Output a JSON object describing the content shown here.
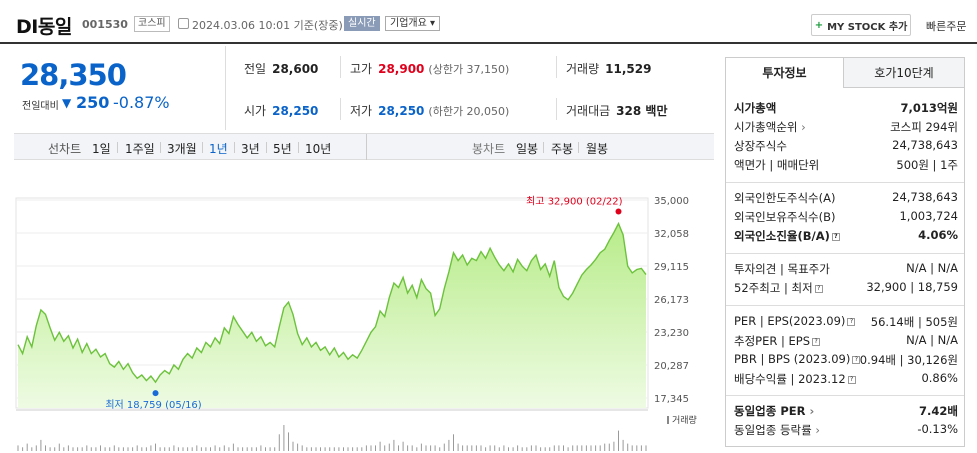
{
  "header": {
    "name": "DI동일",
    "code": "001530",
    "market": "코스피",
    "datetime": "2024.03.06 10:01 기준(장중)",
    "realtime": "실시간",
    "company_info": "기업개요",
    "mystock": "MY STOCK 추가",
    "quick_order": "빠른주문"
  },
  "price": {
    "current": "28,350",
    "change_label": "전일대비",
    "change_value": "250",
    "change_pct": "-0.87%"
  },
  "quote": {
    "prev_label": "전일",
    "prev": "28,600",
    "high_label": "고가",
    "high": "28,900",
    "upper_limit": "(상한가 37,150)",
    "volume_label": "거래량",
    "volume": "11,529",
    "open_label": "시가",
    "open": "28,250",
    "low_label": "저가",
    "low": "28,250",
    "lower_limit": "(하한가 20,050)",
    "amount_label": "거래대금",
    "amount": "328 백만"
  },
  "period": {
    "line_label": "선차트",
    "line_items": [
      "1일",
      "1주일",
      "3개월",
      "1년",
      "3년",
      "5년",
      "10년"
    ],
    "active": "1년",
    "candle_label": "봉차트",
    "candle_items": [
      "일봉",
      "주봉",
      "월봉"
    ]
  },
  "chart_data": {
    "type": "area",
    "yticks": [
      "35,000",
      "32,058",
      "29,115",
      "26,173",
      "23,230",
      "20,287",
      "17,345"
    ],
    "ylim": [
      17345,
      35000
    ],
    "values": [
      22100,
      21300,
      22800,
      21900,
      23800,
      25200,
      24800,
      23600,
      22500,
      23200,
      22400,
      22900,
      21800,
      22600,
      21400,
      22200,
      21300,
      21700,
      21000,
      21300,
      20400,
      20100,
      20600,
      19900,
      20400,
      19600,
      19100,
      19400,
      18900,
      19300,
      18759,
      19400,
      19800,
      19500,
      20300,
      19900,
      20800,
      21300,
      20900,
      21800,
      21400,
      22300,
      21900,
      22700,
      22200,
      23600,
      23100,
      24600,
      23900,
      23300,
      22700,
      23200,
      22400,
      22800,
      22000,
      22300,
      21900,
      23700,
      25400,
      25900,
      24800,
      23100,
      22100,
      22700,
      21900,
      22300,
      21600,
      21900,
      21200,
      21800,
      21000,
      21400,
      20800,
      21200,
      20900,
      21600,
      22400,
      23200,
      23700,
      25100,
      24600,
      26300,
      27600,
      27200,
      28100,
      26700,
      27400,
      26300,
      27900,
      27100,
      26700,
      24700,
      25300,
      27100,
      28600,
      30300,
      29600,
      30100,
      29200,
      29800,
      29600,
      30400,
      29800,
      30700,
      29900,
      29200,
      28700,
      29300,
      28600,
      29700,
      29100,
      28700,
      29600,
      30100,
      28800,
      29300,
      28200,
      29600,
      27200,
      26400,
      26100,
      26700,
      27500,
      28300,
      28800,
      29200,
      29700,
      30300,
      30600,
      31400,
      32100,
      32900,
      31900,
      29100,
      28500,
      28800,
      28900,
      28350
    ],
    "high_label": "최고 32,900 (02/22)",
    "low_label": "최저 18,759 (05/16)",
    "volume_label": "거래량",
    "volumes": [
      3,
      2,
      4,
      2,
      3,
      6,
      3,
      2,
      2,
      4,
      2,
      3,
      2,
      2,
      2,
      3,
      2,
      2,
      3,
      2,
      2,
      3,
      2,
      2,
      2,
      2,
      3,
      2,
      2,
      3,
      4,
      2,
      2,
      2,
      3,
      2,
      2,
      2,
      2,
      3,
      2,
      2,
      2,
      3,
      2,
      3,
      2,
      4,
      2,
      2,
      2,
      2,
      2,
      3,
      2,
      2,
      2,
      9,
      14,
      10,
      5,
      4,
      3,
      2,
      2,
      2,
      2,
      2,
      2,
      2,
      2,
      2,
      2,
      2,
      2,
      2,
      3,
      3,
      3,
      5,
      3,
      4,
      6,
      3,
      5,
      3,
      3,
      2,
      4,
      3,
      3,
      3,
      2,
      4,
      6,
      9,
      4,
      3,
      3,
      3,
      3,
      3,
      2,
      3,
      3,
      2,
      3,
      2,
      2,
      3,
      2,
      2,
      3,
      3,
      2,
      2,
      2,
      3,
      3,
      3,
      2,
      3,
      3,
      3,
      3,
      3,
      3,
      3,
      4,
      4,
      5,
      11,
      6,
      4,
      3,
      3,
      3,
      3
    ]
  },
  "info": {
    "tab_invest": "투자정보",
    "tab_orderbook": "호가10단계",
    "market_cap_label": "시가총액",
    "market_cap": "7,013억원",
    "rank_label": "시가총액순위",
    "rank": "코스피 294위",
    "shares_label": "상장주식수",
    "shares": "24,738,643",
    "par_label": "액면가 | 매매단위",
    "par": "500원 | 1주",
    "foreign_limit_label": "외국인한도주식수(A)",
    "foreign_limit": "24,738,643",
    "foreign_hold_label": "외국인보유주식수(B)",
    "foreign_hold": "1,003,724",
    "foreign_ratio_label": "외국인소진율(B/A)",
    "foreign_ratio": "4.06%",
    "opinion_label": "투자의견 | 목표주가",
    "opinion": "N/A | N/A",
    "w52_label": "52주최고 | 최저",
    "w52": "32,900 | 18,759",
    "per_label": "PER | EPS(2023.09)",
    "per": "56.14배 | 505원",
    "est_per_label": "추정PER | EPS",
    "est_per": "N/A | N/A",
    "pbr_label": "PBR | BPS (2023.09)",
    "pbr": "0.94배 | 30,126원",
    "div_label": "배당수익률 | 2023.12",
    "div": "0.86%",
    "sector_per_label": "동일업종 PER",
    "sector_per": "7.42배",
    "sector_rate_label": "동일업종 등락률",
    "sector_rate": "-0.13%"
  }
}
